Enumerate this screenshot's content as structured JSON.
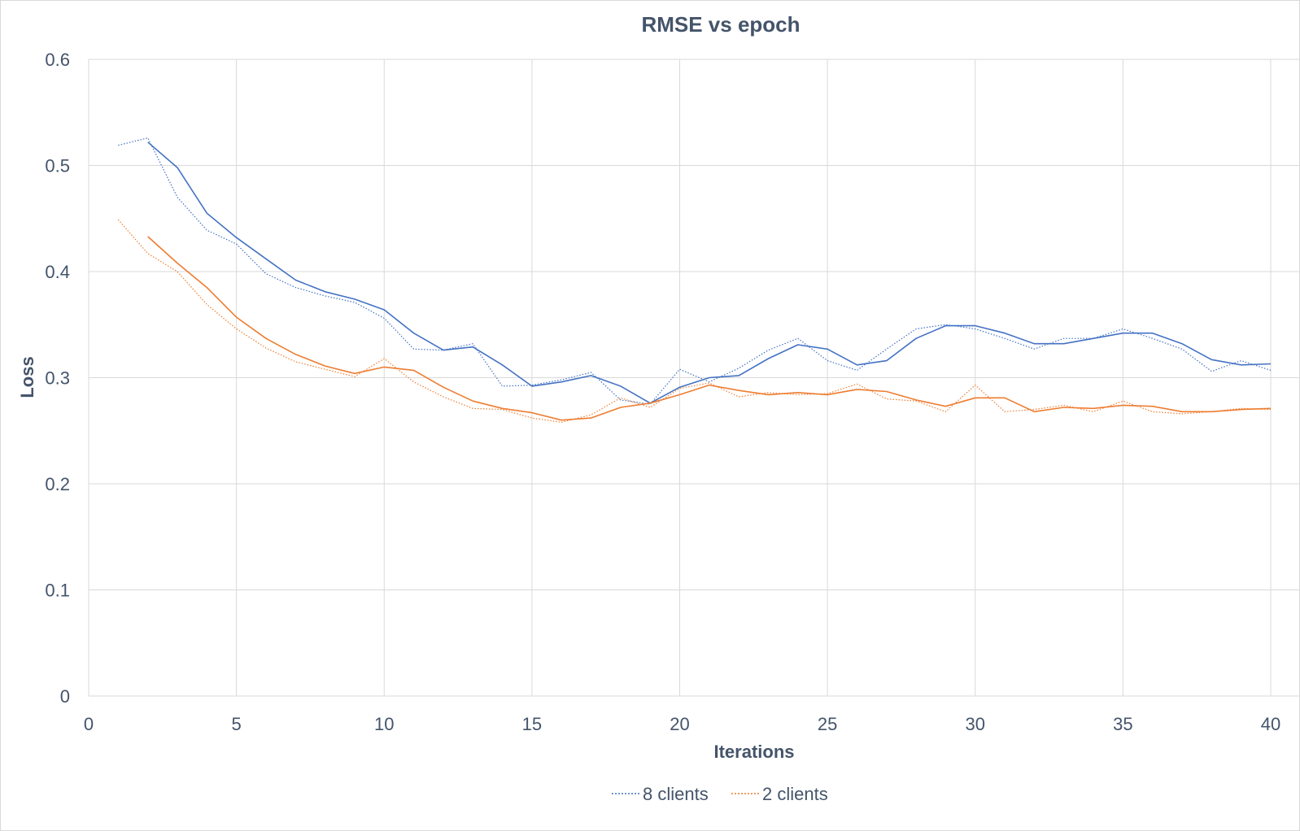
{
  "chart_data": {
    "type": "line",
    "title": "RMSE vs epoch",
    "xlabel": "Iterations",
    "ylabel": "Loss",
    "xlim": [
      0,
      40
    ],
    "ylim": [
      0,
      0.6
    ],
    "xticks": [
      0,
      5,
      10,
      15,
      20,
      25,
      30,
      35,
      40
    ],
    "xtick_labels": [
      "0",
      "5",
      "10",
      "15",
      "20",
      "25",
      "30",
      "35",
      "40"
    ],
    "yticks": [
      0,
      0.1,
      0.2,
      0.3,
      0.4,
      0.5,
      0.6
    ],
    "ytick_labels": [
      "0",
      "0.1",
      "0.2",
      "0.3",
      "0.4",
      "0.5",
      "0.6"
    ],
    "grid": true,
    "legend": "bottom",
    "series": [
      {
        "name": "8 clients",
        "color": "#4472c4",
        "style": "dotted",
        "x": [
          1,
          2,
          3,
          4,
          5,
          6,
          7,
          8,
          9,
          10,
          11,
          12,
          13,
          14,
          15,
          16,
          17,
          18,
          19,
          20,
          21,
          22,
          23,
          24,
          25,
          26,
          27,
          28,
          29,
          30,
          31,
          32,
          33,
          34,
          35,
          36,
          37,
          38,
          39,
          40
        ],
        "values": [
          0.519,
          0.526,
          0.47,
          0.439,
          0.426,
          0.398,
          0.385,
          0.377,
          0.371,
          0.356,
          0.327,
          0.326,
          0.332,
          0.292,
          0.293,
          0.298,
          0.305,
          0.279,
          0.275,
          0.308,
          0.296,
          0.309,
          0.326,
          0.337,
          0.316,
          0.307,
          0.327,
          0.346,
          0.35,
          0.346,
          0.337,
          0.327,
          0.337,
          0.337,
          0.346,
          0.337,
          0.327,
          0.306,
          0.316,
          0.307
        ]
      },
      {
        "name": "2 clients",
        "color": "#ed7d31",
        "style": "dotted",
        "x": [
          1,
          2,
          3,
          4,
          5,
          6,
          7,
          8,
          9,
          10,
          11,
          12,
          13,
          14,
          15,
          16,
          17,
          18,
          19,
          20,
          21,
          22,
          23,
          24,
          25,
          26,
          27,
          28,
          29,
          30,
          31,
          32,
          33,
          34,
          35,
          36,
          37,
          38,
          39,
          40
        ],
        "values": [
          0.449,
          0.417,
          0.4,
          0.369,
          0.346,
          0.328,
          0.315,
          0.308,
          0.301,
          0.318,
          0.296,
          0.282,
          0.271,
          0.27,
          0.262,
          0.258,
          0.265,
          0.281,
          0.272,
          0.29,
          0.295,
          0.282,
          0.286,
          0.284,
          0.285,
          0.294,
          0.28,
          0.278,
          0.268,
          0.293,
          0.268,
          0.27,
          0.274,
          0.268,
          0.278,
          0.268,
          0.266,
          0.268,
          0.271,
          0.27
        ]
      },
      {
        "name": "",
        "color": "#4472c4",
        "style": "solid",
        "x": [
          2,
          3,
          4,
          5,
          6,
          7,
          8,
          9,
          10,
          11,
          12,
          13,
          14,
          15,
          16,
          17,
          18,
          19,
          20,
          21,
          22,
          23,
          24,
          25,
          26,
          27,
          28,
          29,
          30,
          31,
          32,
          33,
          34,
          35,
          36,
          37,
          38,
          39,
          40
        ],
        "values": [
          0.522,
          0.498,
          0.455,
          0.432,
          0.412,
          0.392,
          0.381,
          0.374,
          0.364,
          0.342,
          0.326,
          0.329,
          0.312,
          0.292,
          0.296,
          0.302,
          0.292,
          0.276,
          0.291,
          0.3,
          0.302,
          0.318,
          0.331,
          0.327,
          0.312,
          0.316,
          0.337,
          0.349,
          0.349,
          0.342,
          0.332,
          0.332,
          0.337,
          0.342,
          0.342,
          0.332,
          0.317,
          0.312,
          0.313
        ]
      },
      {
        "name": "",
        "color": "#ed7d31",
        "style": "solid",
        "x": [
          2,
          3,
          4,
          5,
          6,
          7,
          8,
          9,
          10,
          11,
          12,
          13,
          14,
          15,
          16,
          17,
          18,
          19,
          20,
          21,
          22,
          23,
          24,
          25,
          26,
          27,
          28,
          29,
          30,
          31,
          32,
          33,
          34,
          35,
          36,
          37,
          38,
          39,
          40
        ],
        "values": [
          0.433,
          0.408,
          0.385,
          0.357,
          0.337,
          0.322,
          0.311,
          0.304,
          0.31,
          0.307,
          0.291,
          0.278,
          0.271,
          0.267,
          0.26,
          0.262,
          0.272,
          0.276,
          0.284,
          0.293,
          0.288,
          0.284,
          0.286,
          0.284,
          0.289,
          0.287,
          0.279,
          0.273,
          0.281,
          0.281,
          0.268,
          0.272,
          0.271,
          0.274,
          0.273,
          0.268,
          0.268,
          0.27,
          0.271
        ]
      }
    ],
    "legend_entries": [
      {
        "label": "8 clients",
        "color": "#4472c4",
        "style": "dotted"
      },
      {
        "label": "2 clients",
        "color": "#ed7d31",
        "style": "dotted"
      }
    ]
  }
}
